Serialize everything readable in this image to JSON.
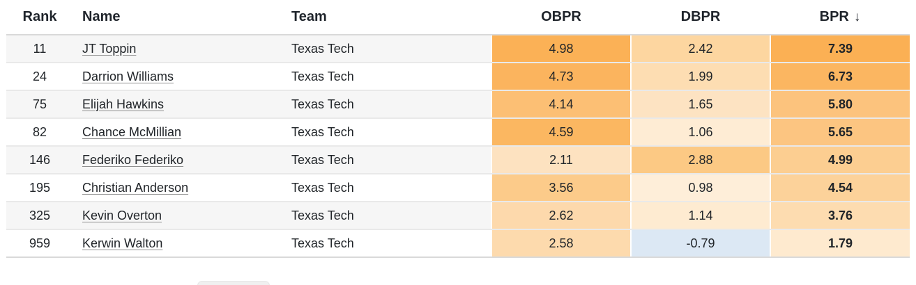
{
  "table": {
    "columns": [
      {
        "key": "rank",
        "label": "Rank"
      },
      {
        "key": "name",
        "label": "Name"
      },
      {
        "key": "team",
        "label": "Team"
      },
      {
        "key": "obpr",
        "label": "OBPR"
      },
      {
        "key": "dbpr",
        "label": "DBPR"
      },
      {
        "key": "bpr",
        "label": "BPR",
        "sort": "desc",
        "sort_arrow": "↓"
      }
    ],
    "rows": [
      {
        "rank": "11",
        "name": "JT Toppin",
        "team": "Texas Tech",
        "obpr": {
          "value": "4.98",
          "bg": "#fbb156"
        },
        "dbpr": {
          "value": "2.42",
          "bg": "#fdd6a0"
        },
        "bpr": {
          "value": "7.39",
          "bg": "#fbb054"
        }
      },
      {
        "rank": "24",
        "name": "Darrion Williams",
        "team": "Texas Tech",
        "obpr": {
          "value": "4.73",
          "bg": "#fbb45e"
        },
        "dbpr": {
          "value": "1.99",
          "bg": "#fdddb2"
        },
        "bpr": {
          "value": "6.73",
          "bg": "#fbb661"
        }
      },
      {
        "rank": "75",
        "name": "Elijah Hawkins",
        "team": "Texas Tech",
        "obpr": {
          "value": "4.14",
          "bg": "#fcbf74"
        },
        "dbpr": {
          "value": "1.65",
          "bg": "#fde3c2"
        },
        "bpr": {
          "value": "5.80",
          "bg": "#fcc37d"
        }
      },
      {
        "rank": "82",
        "name": "Chance McMillian",
        "team": "Texas Tech",
        "obpr": {
          "value": "4.59",
          "bg": "#fbb761"
        },
        "dbpr": {
          "value": "1.06",
          "bg": "#feecd4"
        },
        "bpr": {
          "value": "5.65",
          "bg": "#fcc581"
        }
      },
      {
        "rank": "146",
        "name": "Federiko Federiko",
        "team": "Texas Tech",
        "obpr": {
          "value": "2.11",
          "bg": "#fde2c0"
        },
        "dbpr": {
          "value": "2.88",
          "bg": "#fcc984"
        },
        "bpr": {
          "value": "4.99",
          "bg": "#fcce91"
        }
      },
      {
        "rank": "195",
        "name": "Christian Anderson",
        "team": "Texas Tech",
        "obpr": {
          "value": "3.56",
          "bg": "#fccb8a"
        },
        "dbpr": {
          "value": "0.98",
          "bg": "#feeed9"
        },
        "bpr": {
          "value": "4.54",
          "bg": "#fcd29a"
        }
      },
      {
        "rank": "325",
        "name": "Kevin Overton",
        "team": "Texas Tech",
        "obpr": {
          "value": "2.62",
          "bg": "#fdd9ac"
        },
        "dbpr": {
          "value": "1.14",
          "bg": "#feebd1"
        },
        "bpr": {
          "value": "3.76",
          "bg": "#fddcb0"
        }
      },
      {
        "rank": "959",
        "name": "Kerwin Walton",
        "team": "Texas Tech",
        "obpr": {
          "value": "2.58",
          "bg": "#fddaad"
        },
        "dbpr": {
          "value": "-0.79",
          "bg": "#dce8f4"
        },
        "bpr": {
          "value": "1.79",
          "bg": "#feeacf"
        }
      }
    ]
  },
  "colors": {
    "header_text": "#1f242b",
    "body_text": "#212529",
    "row_stripe": "#f6f6f6",
    "row_divider": "#e9e9e9",
    "table_border": "#d9d9d9",
    "heat_max_orange": "#fbb054",
    "heat_negative_blue": "#dce8f4"
  }
}
